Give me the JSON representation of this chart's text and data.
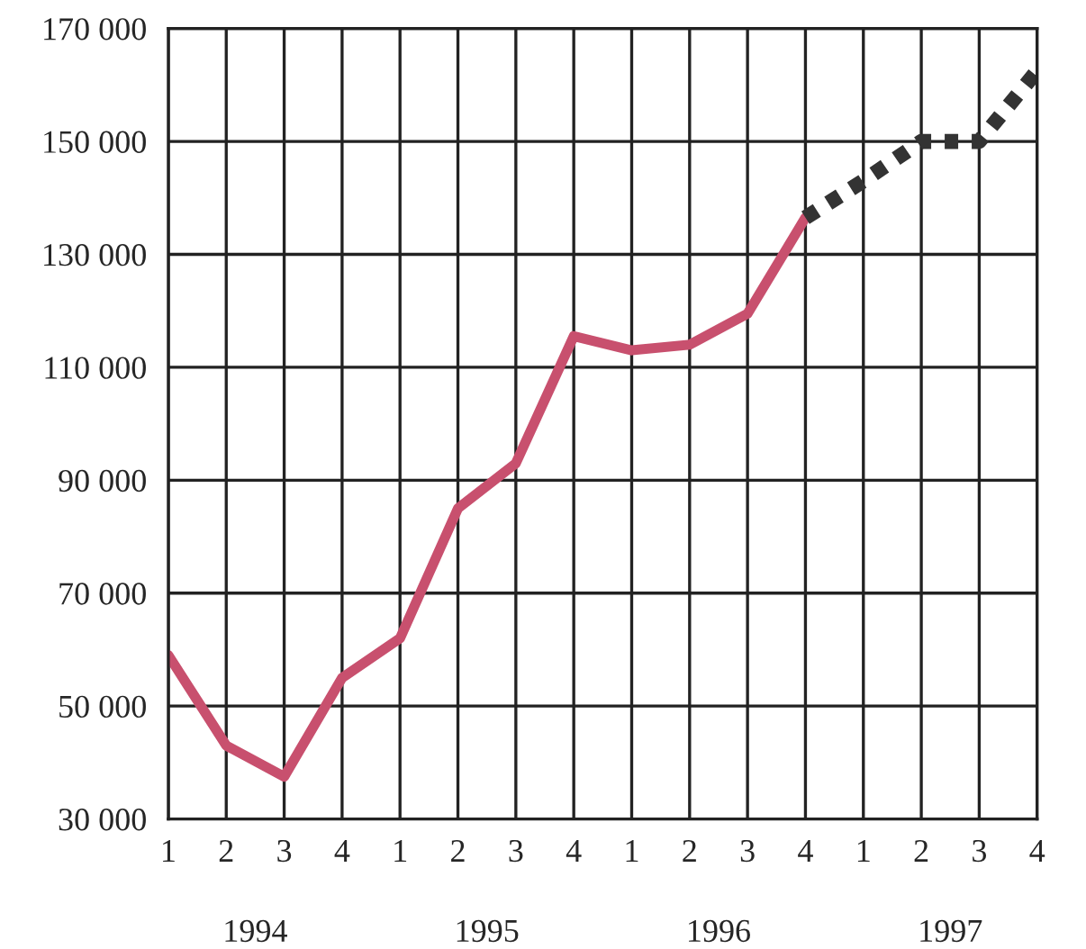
{
  "chart_data": {
    "type": "line",
    "categories": [
      "1",
      "2",
      "3",
      "4",
      "1",
      "2",
      "3",
      "4",
      "1",
      "2",
      "3",
      "4",
      "1",
      "2",
      "3",
      "4"
    ],
    "series": [
      {
        "color": "#c8506e",
        "line_style": "solid",
        "values": [
          59000,
          43000,
          37500,
          55000,
          62000,
          85000,
          93000,
          115500,
          113000,
          114000,
          119500,
          136500,
          null,
          null,
          null,
          null
        ]
      },
      {
        "color": "#333333",
        "line_style": "dotted",
        "values": [
          null,
          null,
          null,
          null,
          null,
          null,
          null,
          null,
          null,
          null,
          null,
          136500,
          143000,
          150000,
          150000,
          162500
        ]
      }
    ],
    "ylim": [
      30000,
      170000
    ],
    "yticks": [
      {
        "value": 30000,
        "label": "30 000"
      },
      {
        "value": 50000,
        "label": "50 000"
      },
      {
        "value": 70000,
        "label": "70 000"
      },
      {
        "value": 90000,
        "label": "90 000"
      },
      {
        "value": 110000,
        "label": "110 000"
      },
      {
        "value": 130000,
        "label": "130 000"
      },
      {
        "value": 150000,
        "label": "150 000"
      },
      {
        "value": 170000,
        "label": "170 000"
      }
    ],
    "grid": true,
    "legend": false,
    "annotations": [
      "1994",
      "1995",
      "1996",
      "1997"
    ]
  }
}
